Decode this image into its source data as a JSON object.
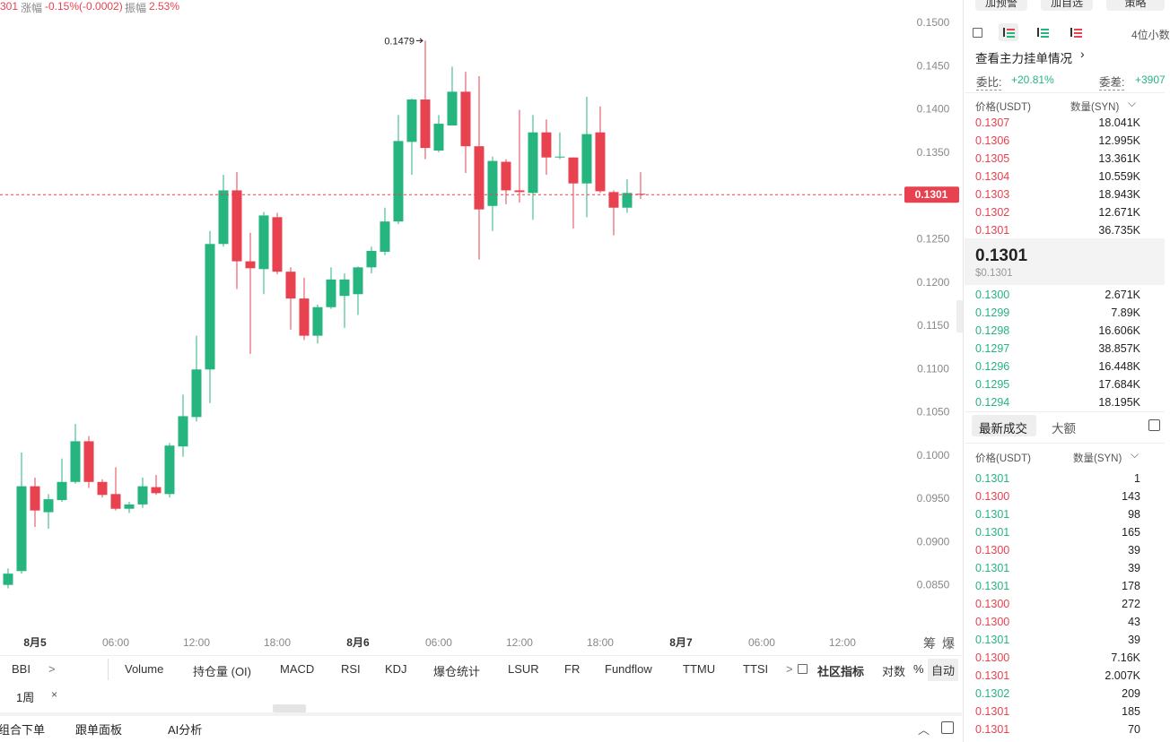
{
  "header": {
    "price": "301",
    "change_label": "涨幅",
    "change": "-0.15%(-0.0002)",
    "amp_label": "振幅",
    "amp": "2.53%"
  },
  "chart_data": {
    "type": "candlestick",
    "up_color": "#26b47f",
    "down_color": "#e8414f",
    "candles": [
      {
        "open": 0.085,
        "high": 0.0869,
        "low": 0.0846,
        "close": 0.0863
      },
      {
        "open": 0.0866,
        "high": 0.1003,
        "low": 0.0863,
        "close": 0.0964
      },
      {
        "open": 0.0964,
        "high": 0.0974,
        "low": 0.0917,
        "close": 0.0936
      },
      {
        "open": 0.0934,
        "high": 0.0955,
        "low": 0.0915,
        "close": 0.0949
      },
      {
        "open": 0.0948,
        "high": 0.0996,
        "low": 0.0946,
        "close": 0.0969
      },
      {
        "open": 0.0969,
        "high": 0.1036,
        "low": 0.0967,
        "close": 0.1016
      },
      {
        "open": 0.1016,
        "high": 0.1022,
        "low": 0.0962,
        "close": 0.0969
      },
      {
        "open": 0.0969,
        "high": 0.0972,
        "low": 0.0951,
        "close": 0.0954
      },
      {
        "open": 0.0955,
        "high": 0.0986,
        "low": 0.0936,
        "close": 0.0938
      },
      {
        "open": 0.0938,
        "high": 0.0946,
        "low": 0.0933,
        "close": 0.0943
      },
      {
        "open": 0.0943,
        "high": 0.0974,
        "low": 0.0939,
        "close": 0.0964
      },
      {
        "open": 0.0963,
        "high": 0.0977,
        "low": 0.0954,
        "close": 0.0956
      },
      {
        "open": 0.0955,
        "high": 0.1014,
        "low": 0.0951,
        "close": 0.1011
      },
      {
        "open": 0.101,
        "high": 0.107,
        "low": 0.0998,
        "close": 0.1045
      },
      {
        "open": 0.1044,
        "high": 0.1138,
        "low": 0.1039,
        "close": 0.1099
      },
      {
        "open": 0.1099,
        "high": 0.1259,
        "low": 0.106,
        "close": 0.1244
      },
      {
        "open": 0.1244,
        "high": 0.1324,
        "low": 0.1241,
        "close": 0.1306
      },
      {
        "open": 0.1306,
        "high": 0.1327,
        "low": 0.1192,
        "close": 0.1224
      },
      {
        "open": 0.1224,
        "high": 0.1257,
        "low": 0.1117,
        "close": 0.1216
      },
      {
        "open": 0.1215,
        "high": 0.1281,
        "low": 0.1186,
        "close": 0.1277
      },
      {
        "open": 0.1275,
        "high": 0.128,
        "low": 0.1209,
        "close": 0.1212
      },
      {
        "open": 0.1212,
        "high": 0.1217,
        "low": 0.1145,
        "close": 0.1181
      },
      {
        "open": 0.1181,
        "high": 0.1205,
        "low": 0.1133,
        "close": 0.1138
      },
      {
        "open": 0.1138,
        "high": 0.1174,
        "low": 0.1129,
        "close": 0.1171
      },
      {
        "open": 0.1171,
        "high": 0.1217,
        "low": 0.1169,
        "close": 0.1203
      },
      {
        "open": 0.1184,
        "high": 0.121,
        "low": 0.1147,
        "close": 0.1203
      },
      {
        "open": 0.1186,
        "high": 0.1218,
        "low": 0.1162,
        "close": 0.1217
      },
      {
        "open": 0.1217,
        "high": 0.1241,
        "low": 0.121,
        "close": 0.1236
      },
      {
        "open": 0.1235,
        "high": 0.1286,
        "low": 0.1231,
        "close": 0.127
      },
      {
        "open": 0.127,
        "high": 0.1393,
        "low": 0.1267,
        "close": 0.1363
      },
      {
        "open": 0.1362,
        "high": 0.1412,
        "low": 0.1324,
        "close": 0.1411
      },
      {
        "open": 0.1411,
        "high": 0.1479,
        "low": 0.1342,
        "close": 0.1355
      },
      {
        "open": 0.1352,
        "high": 0.1393,
        "low": 0.135,
        "close": 0.1383
      },
      {
        "open": 0.1381,
        "high": 0.1449,
        "low": 0.1381,
        "close": 0.142
      },
      {
        "open": 0.142,
        "high": 0.1443,
        "low": 0.1326,
        "close": 0.1357
      },
      {
        "open": 0.1357,
        "high": 0.1438,
        "low": 0.1226,
        "close": 0.1284
      },
      {
        "open": 0.1288,
        "high": 0.1345,
        "low": 0.1259,
        "close": 0.134
      },
      {
        "open": 0.1339,
        "high": 0.1342,
        "low": 0.129,
        "close": 0.1306
      },
      {
        "open": 0.1306,
        "high": 0.1399,
        "low": 0.1292,
        "close": 0.1304
      },
      {
        "open": 0.1303,
        "high": 0.1393,
        "low": 0.1272,
        "close": 0.1373
      },
      {
        "open": 0.1373,
        "high": 0.1388,
        "low": 0.1324,
        "close": 0.1344
      },
      {
        "open": 0.1344,
        "high": 0.1373,
        "low": 0.1342,
        "close": 0.1345
      },
      {
        "open": 0.1344,
        "high": 0.1344,
        "low": 0.1262,
        "close": 0.1314
      },
      {
        "open": 0.1314,
        "high": 0.1414,
        "low": 0.1275,
        "close": 0.1371
      },
      {
        "open": 0.1373,
        "high": 0.1403,
        "low": 0.1303,
        "close": 0.1305
      },
      {
        "open": 0.1304,
        "high": 0.1306,
        "low": 0.1254,
        "close": 0.1286
      },
      {
        "open": 0.1286,
        "high": 0.1319,
        "low": 0.128,
        "close": 0.1303
      },
      {
        "open": 0.1302,
        "high": 0.1327,
        "low": 0.1296,
        "close": 0.1301
      }
    ],
    "xlim": [
      -0.6,
      66.07
    ],
    "xticks": [
      {
        "value": 2,
        "label": "8月5"
      },
      {
        "value": 8,
        "label": "06:00"
      },
      {
        "value": 14,
        "label": "12:00"
      },
      {
        "value": 20,
        "label": "18:00"
      },
      {
        "value": 26,
        "label": "8月6"
      },
      {
        "value": 32,
        "label": "06:00"
      },
      {
        "value": 38,
        "label": "12:00"
      },
      {
        "value": 44,
        "label": "18:00"
      },
      {
        "value": 50,
        "label": "8月7"
      },
      {
        "value": 56,
        "label": "06:00"
      },
      {
        "value": 62,
        "label": "12:00"
      }
    ],
    "ylim": [
      0.0801,
      0.1526
    ],
    "yticks": [
      {
        "value": 0.15,
        "label": "0.1500"
      },
      {
        "value": 0.145,
        "label": "0.1450"
      },
      {
        "value": 0.14,
        "label": "0.1400"
      },
      {
        "value": 0.135,
        "label": "0.1350"
      },
      {
        "value": 0.13,
        "label": "0.1300"
      },
      {
        "value": 0.125,
        "label": "0.1250"
      },
      {
        "value": 0.12,
        "label": "0.1200"
      },
      {
        "value": 0.115,
        "label": "0.1150"
      },
      {
        "value": 0.11,
        "label": "0.1100"
      },
      {
        "value": 0.105,
        "label": "0.1050"
      },
      {
        "value": 0.1,
        "label": "0.1000"
      },
      {
        "value": 0.095,
        "label": "0.0950"
      },
      {
        "value": 0.09,
        "label": "0.0900"
      },
      {
        "value": 0.085,
        "label": "0.0850"
      }
    ],
    "last_price": {
      "value": 0.1301,
      "label": "0.1301"
    },
    "annotation": {
      "value": 0.1479,
      "label": "0.1479"
    },
    "axis_buttons": [
      "筹",
      "爆"
    ]
  },
  "indicators": [
    "BBI",
    ">",
    "Volume",
    "持仓量 (OI)",
    "MACD",
    "RSI",
    "KDJ",
    "爆仓统计",
    "LSUR",
    "FR",
    "Fundflow",
    "TTMU",
    "TTSI",
    ">",
    "社区指标",
    "对数",
    "%",
    "自动"
  ],
  "period": "1周",
  "bottom_tabs": [
    "组合下单",
    "跟单面板",
    "AI分析"
  ],
  "panel": {
    "buttons": [
      "加预警",
      "加自选",
      "策略"
    ],
    "precision": "4位小数",
    "depth_link": "查看主力挂单情况",
    "ratio_label": "委比:",
    "ratio": "+20.81%",
    "diff_label": "委差:",
    "diff": "+3907",
    "price_header": "价格(USDT)",
    "qty_header": "数量(SYN)",
    "asks": [
      {
        "price": "0.1307",
        "qty": "18.041K"
      },
      {
        "price": "0.1306",
        "qty": "12.995K"
      },
      {
        "price": "0.1305",
        "qty": "13.361K"
      },
      {
        "price": "0.1304",
        "qty": "10.559K"
      },
      {
        "price": "0.1303",
        "qty": "18.943K"
      },
      {
        "price": "0.1302",
        "qty": "12.671K"
      },
      {
        "price": "0.1301",
        "qty": "36.735K"
      }
    ],
    "mid_price": "0.1301",
    "mid_usd": "$0.1301",
    "bids": [
      {
        "price": "0.1300",
        "qty": "2.671K"
      },
      {
        "price": "0.1299",
        "qty": "7.89K"
      },
      {
        "price": "0.1298",
        "qty": "16.606K"
      },
      {
        "price": "0.1297",
        "qty": "38.857K"
      },
      {
        "price": "0.1296",
        "qty": "16.448K"
      },
      {
        "price": "0.1295",
        "qty": "17.684K"
      },
      {
        "price": "0.1294",
        "qty": "18.195K"
      }
    ],
    "tabs": [
      "最新成交",
      "大额"
    ],
    "trades": [
      {
        "price": "0.1301",
        "qty": "1",
        "color": "#26b47f"
      },
      {
        "price": "0.1300",
        "qty": "143",
        "color": "#e8414f"
      },
      {
        "price": "0.1301",
        "qty": "98",
        "color": "#26b47f"
      },
      {
        "price": "0.1301",
        "qty": "165",
        "color": "#26b47f"
      },
      {
        "price": "0.1300",
        "qty": "39",
        "color": "#e8414f"
      },
      {
        "price": "0.1301",
        "qty": "39",
        "color": "#26b47f"
      },
      {
        "price": "0.1301",
        "qty": "178",
        "color": "#26b47f"
      },
      {
        "price": "0.1300",
        "qty": "272",
        "color": "#e8414f"
      },
      {
        "price": "0.1300",
        "qty": "43",
        "color": "#e8414f"
      },
      {
        "price": "0.1301",
        "qty": "39",
        "color": "#26b47f"
      },
      {
        "price": "0.1300",
        "qty": "7.16K",
        "color": "#e8414f"
      },
      {
        "price": "0.1301",
        "qty": "2.007K",
        "color": "#e8414f"
      },
      {
        "price": "0.1302",
        "qty": "209",
        "color": "#26b47f"
      },
      {
        "price": "0.1301",
        "qty": "185",
        "color": "#e8414f"
      },
      {
        "price": "0.1301",
        "qty": "70",
        "color": "#e8414f"
      }
    ]
  }
}
